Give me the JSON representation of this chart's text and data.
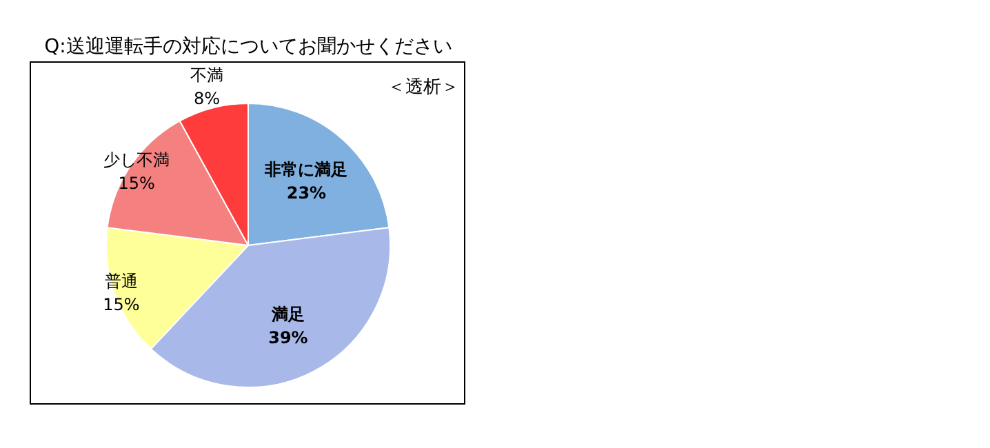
{
  "chart_data": {
    "type": "pie",
    "title": "Q:送迎運転手の対応についてお聞かせください",
    "annotations": [
      "＜透析＞"
    ],
    "categories": [
      "非常に満足",
      "満足",
      "普通",
      "少し不満",
      "不満"
    ],
    "values": [
      23,
      39,
      15,
      15,
      8
    ],
    "colors": [
      "#7fb0e0",
      "#a8b8e8",
      "#ffff99",
      "#f48080",
      "#ff3c3c"
    ],
    "value_labels": [
      "23%",
      "39%",
      "15%",
      "15%",
      "8%"
    ]
  }
}
